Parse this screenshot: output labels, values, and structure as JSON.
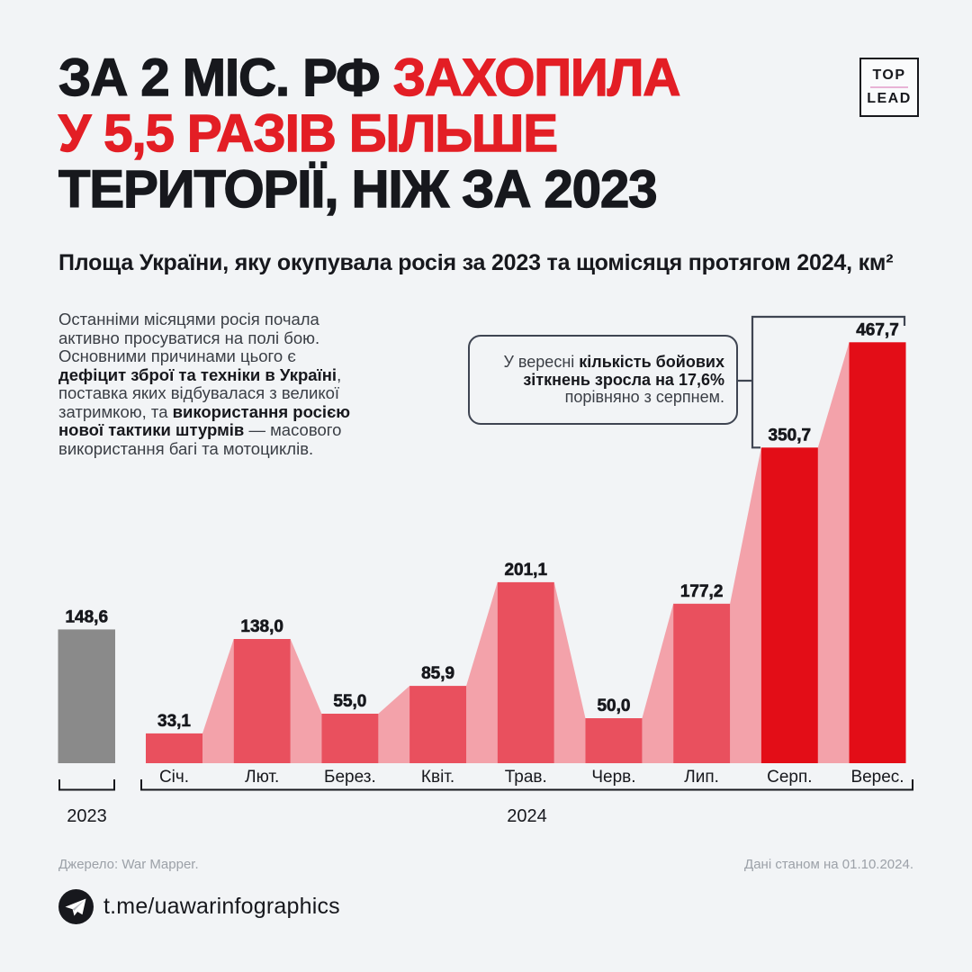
{
  "logo": {
    "top": "TOP",
    "lead": "LEAD"
  },
  "title": {
    "red_color": "#e31e25",
    "black_color": "#17181d",
    "lines": [
      [
        {
          "t": "ЗА 2 МІС. РФ ",
          "c": "black"
        },
        {
          "t": "ЗАХОПИЛА",
          "c": "red"
        }
      ],
      [
        {
          "t": "У 5,5 РАЗІВ БІЛЬШЕ",
          "c": "red"
        }
      ],
      [
        {
          "t": "ТЕРИТОРІЇ, НІЖ ЗА 2023",
          "c": "black"
        }
      ]
    ]
  },
  "subtitle": "Площа України, яку окупувала росія за 2023 та щомісяця протягом 2024, км²",
  "paragraph": {
    "lines": [
      [
        {
          "t": "Останніми місяцями росія почала"
        }
      ],
      [
        {
          "t": "активно просуватися на полі бою."
        }
      ],
      [
        {
          "t": "Основними причинами цього є"
        }
      ],
      [
        {
          "t": "дефіцит зброї та техніки в Україні",
          "b": true
        },
        {
          "t": ","
        }
      ],
      [
        {
          "t": "поставка яких відбувалася з великої"
        }
      ],
      [
        {
          "t": "затримкою, та "
        },
        {
          "t": "використання росією",
          "b": true
        }
      ],
      [
        {
          "t": "нової тактики штурмів",
          "b": true
        },
        {
          "t": " — масового"
        }
      ],
      [
        {
          "t": "використання багі та мотоциклів."
        }
      ]
    ]
  },
  "callout": {
    "lines": [
      [
        {
          "t": "У вересні "
        },
        {
          "t": "кількість бойових",
          "b": true
        }
      ],
      [
        {
          "t": "зіткнень зросла на 17,6%",
          "b": true
        }
      ],
      [
        {
          "t": "порівняно з серпнем."
        }
      ]
    ]
  },
  "chart_data": {
    "type": "bar",
    "title": "Площа України, яку окупувала росія за 2023 та щомісяця протягом 2024, км²",
    "unit": "км²",
    "baseline_2023": {
      "label": "2023",
      "value": 148.6,
      "color": "#8a8a8a"
    },
    "year_label_2024": "2024",
    "categories": [
      "Січ.",
      "Лют.",
      "Берез.",
      "Квіт.",
      "Трав.",
      "Черв.",
      "Лип.",
      "Серп.",
      "Верес."
    ],
    "values": [
      33.1,
      138.0,
      55.0,
      85.9,
      201.1,
      50.0,
      177.2,
      350.7,
      467.7
    ],
    "highlight_from_index": 7,
    "bar_color": "#e9505e",
    "highlight_color": "#e30d17",
    "connector_color": "#f3a2aa",
    "label_color": "#17181d",
    "bracket_color": "#17181d",
    "highlight_bracket_color": "#3f4552",
    "grid": false,
    "legend": false
  },
  "footer": {
    "source": "Джерело: War Mapper.",
    "asof": "Дані станом на 01.10.2024.",
    "telegram": "t.me/uawarinfographics"
  }
}
